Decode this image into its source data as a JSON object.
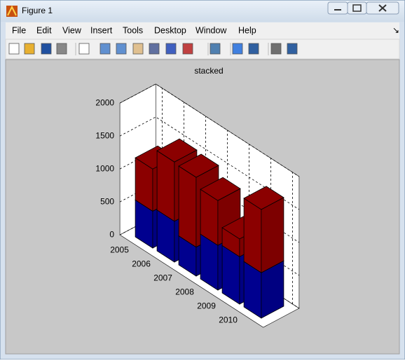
{
  "window": {
    "title": "Figure 1"
  },
  "menu": [
    "File",
    "Edit",
    "View",
    "Insert",
    "Tools",
    "Desktop",
    "Window",
    "Help"
  ],
  "chart_data": {
    "type": "bar3-stacked",
    "title": "stacked",
    "categories": [
      "2005",
      "2006",
      "2007",
      "2008",
      "2009",
      "2010"
    ],
    "series": [
      {
        "color": "#00008f",
        "values": [
          560,
          620,
          440,
          680,
          720,
          690
        ]
      },
      {
        "color": "#8b0000",
        "values": [
          640,
          900,
          1060,
          680,
          270,
          960
        ]
      }
    ],
    "ylim": [
      0,
      2000
    ],
    "yticks": [
      0,
      500,
      1000,
      1500,
      2000
    ],
    "grid": true
  }
}
